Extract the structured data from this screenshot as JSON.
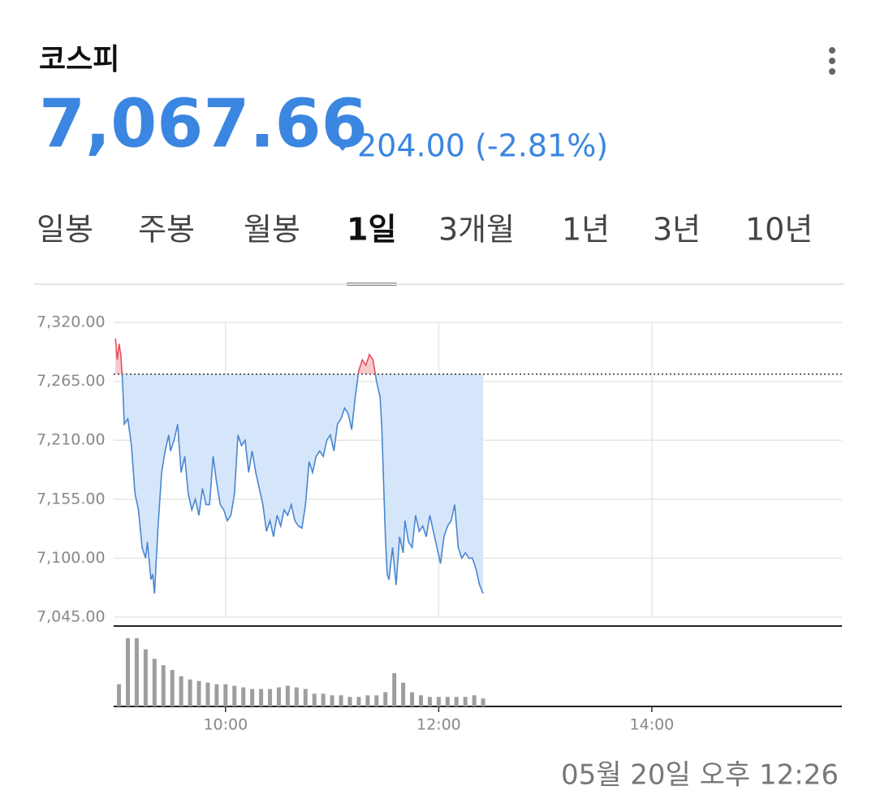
{
  "header": {
    "title": "코스피",
    "price": "7,067.66",
    "change": "204.00 (-2.81%)"
  },
  "tabs": [
    "일봉",
    "주봉",
    "월봉",
    "1일",
    "3개월",
    "1년",
    "3년",
    "10년"
  ],
  "selected_tab": 3,
  "timestamp": "05월 20일 오후 12:26",
  "chart_data": [
    {
      "type": "line",
      "color": "#4a86d0",
      "fill": "#d6e6fa",
      "above_color": "#e8505b",
      "above_fill": "#f6c9cd",
      "reference": 7271.66,
      "xlim": [
        537,
        947
      ],
      "ylim": [
        7045,
        7320
      ],
      "xticks": [
        {
          "value": 600,
          "label": "10:00"
        },
        {
          "value": 720,
          "label": "12:00"
        },
        {
          "value": 840,
          "label": "14:00"
        }
      ],
      "yticks": [
        {
          "value": 7045,
          "label": "7,045.00"
        },
        {
          "value": 7100,
          "label": "7,100.00"
        },
        {
          "value": 7155,
          "label": "7,155.00"
        },
        {
          "value": 7210,
          "label": "7,210.00"
        },
        {
          "value": 7265,
          "label": "7,265.00"
        },
        {
          "value": 7320,
          "label": "7,320.00"
        }
      ],
      "x": [
        538,
        539,
        540,
        541,
        542,
        543,
        545,
        547,
        549,
        551,
        553,
        555,
        556,
        558,
        559,
        560,
        562,
        564,
        566,
        568,
        569,
        571,
        573,
        575,
        577,
        579,
        581,
        583,
        585,
        587,
        589,
        591,
        593,
        595,
        597,
        599,
        601,
        603,
        605,
        607,
        609,
        611,
        613,
        615,
        617,
        619,
        621,
        623,
        625,
        627,
        629,
        631,
        633,
        635,
        637,
        639,
        641,
        643,
        645,
        647,
        649,
        651,
        653,
        655,
        657,
        659,
        661,
        663,
        665,
        667,
        669,
        671,
        673,
        675,
        677,
        679,
        681,
        683,
        685,
        687,
        688,
        689,
        690,
        691,
        692,
        694,
        696,
        698,
        700,
        701,
        703,
        705,
        707,
        709,
        711,
        713,
        715,
        717,
        719,
        721,
        723,
        725,
        727,
        729,
        731,
        733,
        735,
        737,
        739,
        741,
        743,
        745
      ],
      "values": [
        7305,
        7285,
        7300,
        7290,
        7265,
        7225,
        7230,
        7205,
        7160,
        7145,
        7110,
        7100,
        7115,
        7080,
        7085,
        7067,
        7130,
        7180,
        7200,
        7215,
        7200,
        7210,
        7225,
        7180,
        7195,
        7160,
        7145,
        7155,
        7140,
        7165,
        7150,
        7150,
        7195,
        7170,
        7150,
        7145,
        7135,
        7140,
        7160,
        7215,
        7205,
        7210,
        7180,
        7200,
        7180,
        7165,
        7150,
        7125,
        7135,
        7120,
        7140,
        7130,
        7145,
        7140,
        7150,
        7135,
        7130,
        7128,
        7150,
        7190,
        7180,
        7195,
        7200,
        7195,
        7210,
        7215,
        7200,
        7225,
        7230,
        7240,
        7235,
        7220,
        7250,
        7275,
        7285,
        7280,
        7290,
        7285,
        7265,
        7250,
        7220,
        7170,
        7120,
        7085,
        7080,
        7110,
        7075,
        7120,
        7105,
        7135,
        7115,
        7110,
        7140,
        7125,
        7130,
        7120,
        7140,
        7125,
        7110,
        7095,
        7120,
        7130,
        7135,
        7150,
        7110,
        7100,
        7105,
        7100,
        7100,
        7090,
        7075,
        7067
      ]
    },
    {
      "type": "bar",
      "color": "#9e9e9e",
      "xlim": [
        537,
        947
      ],
      "ylim": [
        0,
        90
      ],
      "x": [
        540,
        545,
        550,
        555,
        560,
        565,
        570,
        575,
        580,
        585,
        590,
        595,
        600,
        605,
        610,
        615,
        620,
        625,
        630,
        635,
        640,
        645,
        650,
        655,
        660,
        665,
        670,
        675,
        680,
        685,
        690,
        695,
        700,
        705,
        710,
        715,
        720,
        725,
        730,
        735,
        740,
        745
      ],
      "values": [
        28,
        86,
        86,
        72,
        60,
        52,
        46,
        38,
        34,
        32,
        30,
        28,
        28,
        26,
        24,
        22,
        22,
        22,
        24,
        26,
        24,
        22,
        16,
        16,
        14,
        14,
        12,
        12,
        14,
        14,
        18,
        42,
        30,
        18,
        14,
        12,
        12,
        12,
        12,
        12,
        14,
        10
      ]
    }
  ]
}
